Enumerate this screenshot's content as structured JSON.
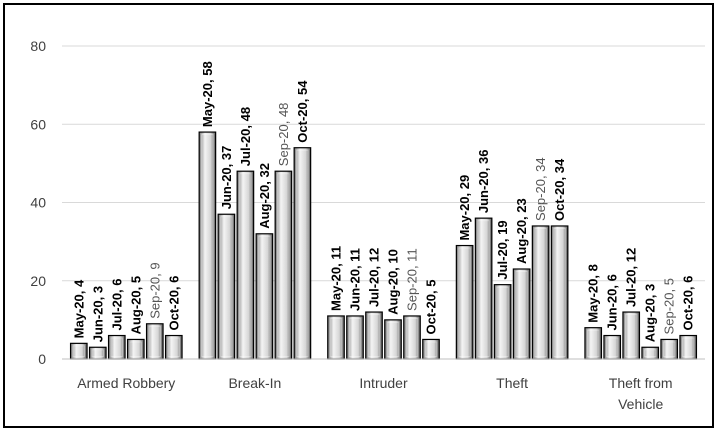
{
  "chart_data": {
    "type": "bar",
    "categories": [
      "Armed Robbery",
      "Break-In",
      "Intruder",
      "Theft",
      "Theft from Vehicle"
    ],
    "categories_display": [
      [
        "Armed Robbery"
      ],
      [
        "Break-In"
      ],
      [
        "Intruder"
      ],
      [
        "Theft"
      ],
      [
        "Theft from",
        "Vehicle"
      ]
    ],
    "series": [
      {
        "name": "May-20",
        "values": [
          4,
          58,
          11,
          29,
          8
        ]
      },
      {
        "name": "Jun-20",
        "values": [
          3,
          37,
          11,
          36,
          6
        ]
      },
      {
        "name": "Jul-20",
        "values": [
          6,
          48,
          12,
          19,
          12
        ]
      },
      {
        "name": "Aug-20",
        "values": [
          5,
          32,
          10,
          23,
          3
        ]
      },
      {
        "name": "Sep-20",
        "values": [
          9,
          48,
          11,
          34,
          5
        ]
      },
      {
        "name": "Oct-20",
        "values": [
          6,
          54,
          5,
          34,
          6
        ]
      }
    ],
    "light_label_series": [
      "Sep-20"
    ],
    "ylim": [
      0,
      80
    ],
    "yticks": [
      0,
      20,
      40,
      60,
      80
    ],
    "grid": true,
    "legend": "none",
    "data_labels": "series name, value (rotated)",
    "colors": {
      "bar_light": "#f2f2f2",
      "bar_dark": "#6e6e6e",
      "bar_stroke": "#000000",
      "grid": "#d9d9d9"
    }
  }
}
